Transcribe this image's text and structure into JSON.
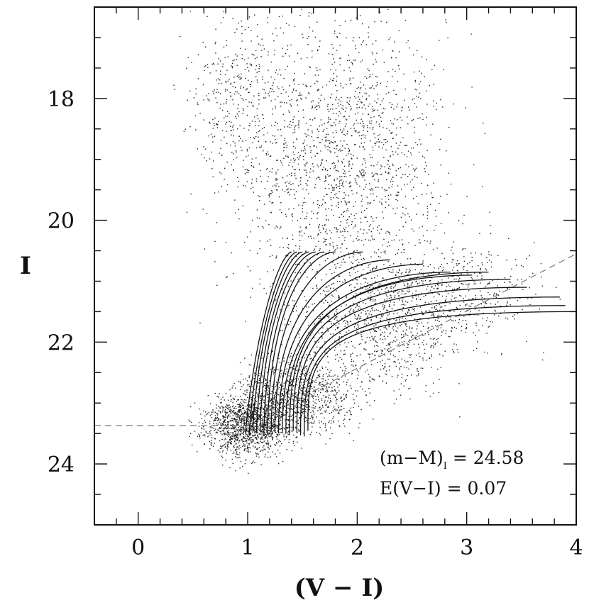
{
  "chart_data": {
    "type": "scatter",
    "title": "",
    "xlabel": "(V − I)",
    "ylabel": "I",
    "xlim": [
      -0.4,
      4.0
    ],
    "ylim": [
      25.0,
      16.5
    ],
    "y_inverted": true,
    "grid": false,
    "xticks": [
      0,
      1,
      2,
      3,
      4
    ],
    "xtick_labels": [
      "0",
      "1",
      "2",
      "3",
      "4"
    ],
    "yticks": [
      18,
      20,
      22,
      24
    ],
    "ytick_labels": [
      "18",
      "20",
      "22",
      "24"
    ],
    "x_minor_step": 0.2,
    "y_minor_step": 0.5,
    "annotations": {
      "distance_modulus_main": "(m−M)",
      "distance_modulus_sub": "I",
      "distance_modulus_value": "= 24.58",
      "reddening": "E(V−I) = 0.07"
    },
    "point_clouds": [
      {
        "name": "",
        "center_x": 1.0,
        "center_y": 23.35,
        "sx": 0.28,
        "sy": 0.35,
        "count": 1400
      },
      {
        "name": "",
        "center_x": 1.45,
        "center_y": 22.9,
        "sx": 0.35,
        "sy": 0.45,
        "count": 1000
      },
      {
        "name": "",
        "center_x": 2.2,
        "center_y": 21.6,
        "sx": 0.55,
        "sy": 0.9,
        "count": 1100
      },
      {
        "name": "",
        "center_x": 3.0,
        "center_y": 21.2,
        "sx": 0.45,
        "sy": 0.6,
        "count": 350
      },
      {
        "name": "",
        "center_x": 1.8,
        "center_y": 19.0,
        "sx": 0.7,
        "sy": 1.5,
        "count": 1700
      },
      {
        "name": "",
        "center_x": 0.9,
        "center_y": 18.0,
        "sx": 0.3,
        "sy": 1.0,
        "count": 300
      }
    ],
    "isochrones": {
      "count": 18,
      "base_x_start": 0.98,
      "base_x_end": 1.55,
      "base_y": 23.55,
      "tips": [
        [
          1.4,
          20.52
        ],
        [
          1.45,
          20.52
        ],
        [
          1.5,
          20.52
        ],
        [
          1.56,
          20.52
        ],
        [
          1.62,
          20.52
        ],
        [
          1.7,
          20.52
        ],
        [
          1.8,
          20.52
        ],
        [
          2.05,
          20.52
        ],
        [
          2.3,
          20.65
        ],
        [
          2.6,
          20.72
        ],
        [
          2.85,
          20.85
        ],
        [
          3.05,
          20.9
        ],
        [
          3.2,
          20.85
        ],
        [
          3.4,
          20.97
        ],
        [
          3.55,
          21.1
        ],
        [
          3.85,
          21.26
        ],
        [
          3.9,
          21.4
        ],
        [
          4.0,
          21.5
        ]
      ]
    },
    "reference_lines": [
      {
        "style": "dashed",
        "x": [
          -0.4,
          1.0
        ],
        "y": [
          23.37,
          23.37
        ]
      },
      {
        "style": "dashed",
        "x": [
          1.0,
          4.0
        ],
        "y": [
          23.37,
          20.55
        ]
      }
    ]
  }
}
